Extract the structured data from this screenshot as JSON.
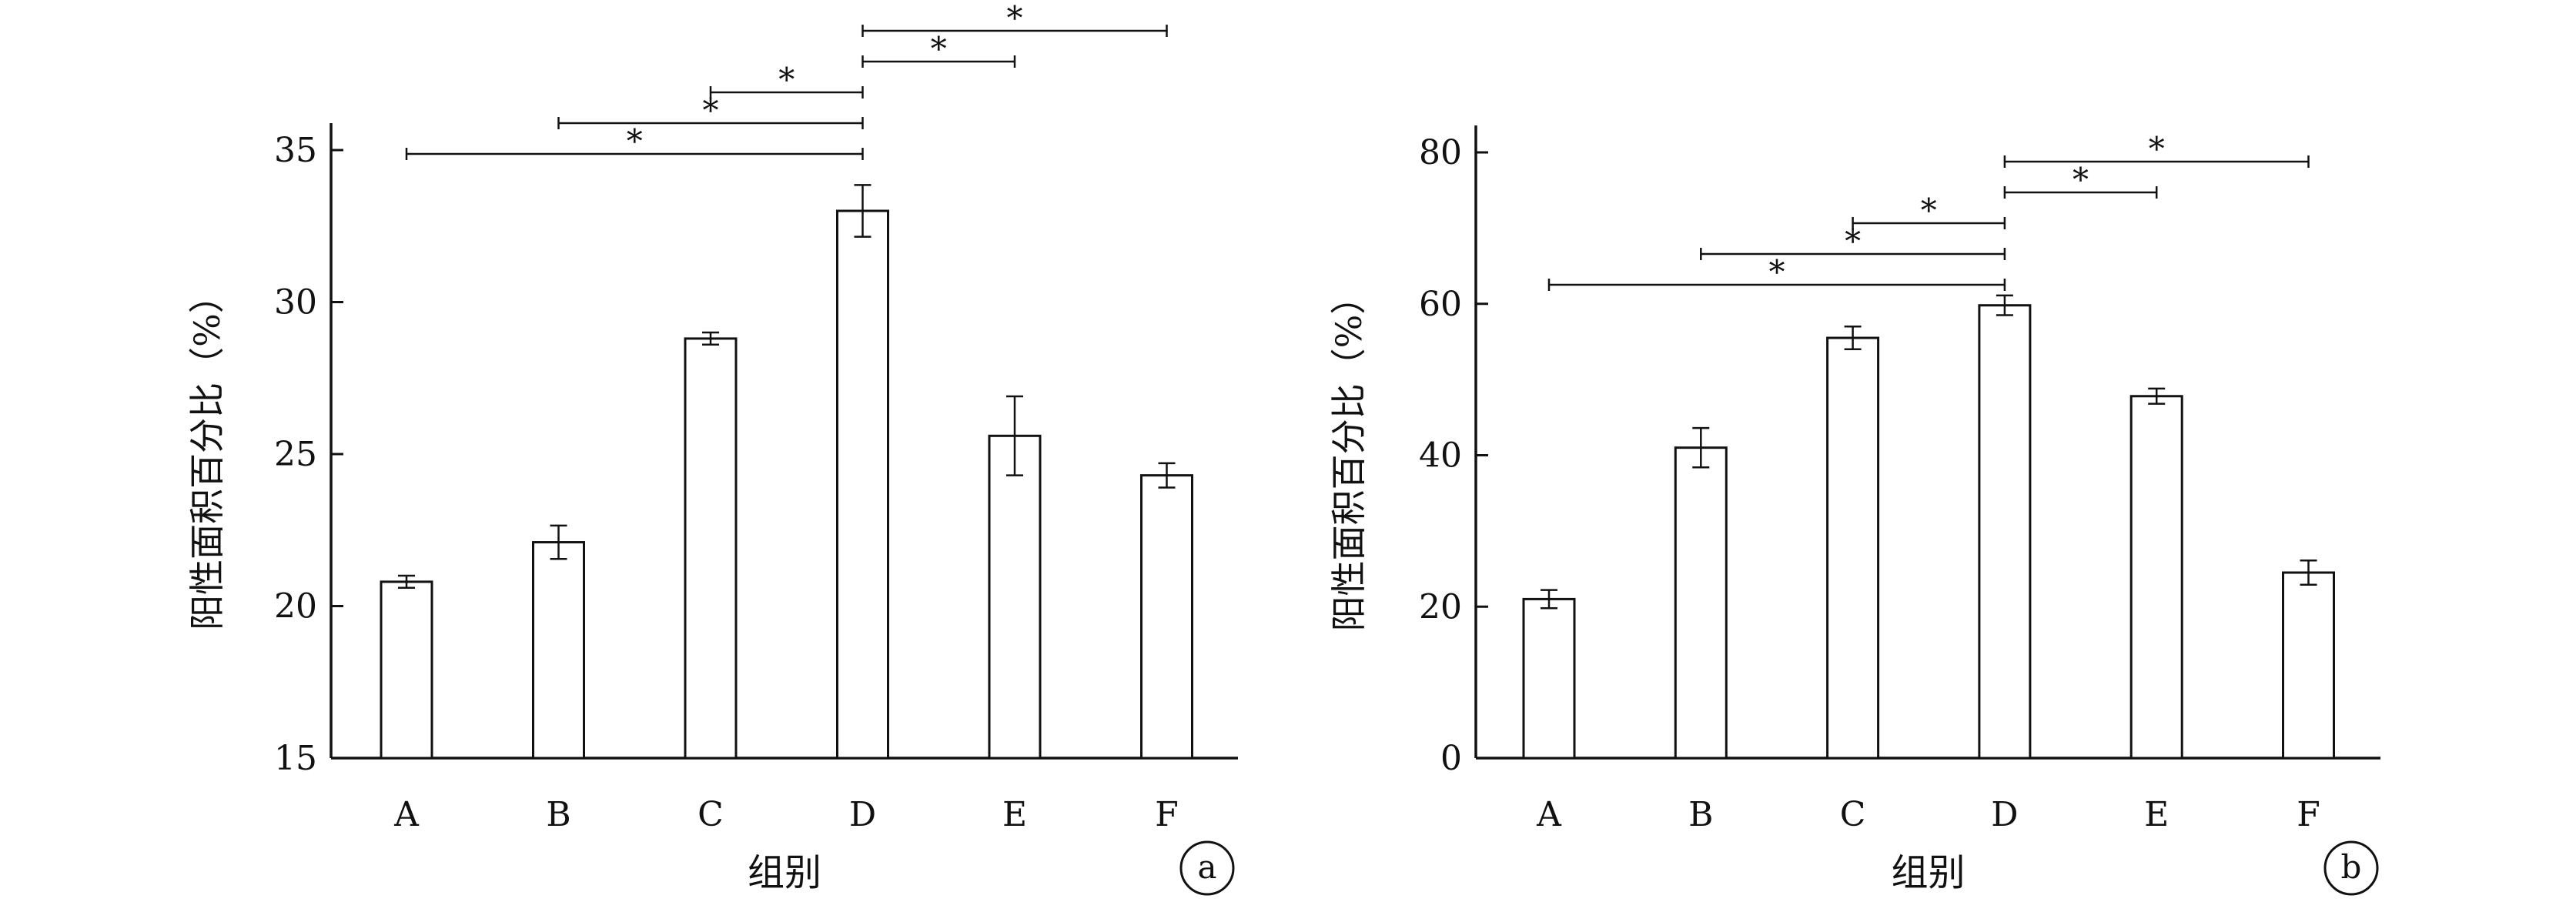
{
  "chart_data": [
    {
      "type": "bar",
      "panel_label": "a",
      "categories": [
        "A",
        "B",
        "C",
        "D",
        "E",
        "F"
      ],
      "values": [
        20.8,
        22.1,
        28.8,
        33.0,
        25.6,
        24.3
      ],
      "errors": [
        0.2,
        0.55,
        0.2,
        0.85,
        1.3,
        0.4
      ],
      "ylim": [
        15,
        35
      ],
      "yticks": [
        "15",
        "20",
        "25",
        "30",
        "35"
      ],
      "xlabel": "组别",
      "ylabel": "阳性面积百分比（%）",
      "significance": [
        {
          "from": "A",
          "to": "D",
          "label": "*"
        },
        {
          "from": "B",
          "to": "D",
          "label": "*"
        },
        {
          "from": "C",
          "to": "D",
          "label": "*"
        },
        {
          "from": "D",
          "to": "E",
          "label": "*"
        },
        {
          "from": "D",
          "to": "F",
          "label": "*"
        }
      ]
    },
    {
      "type": "bar",
      "panel_label": "b",
      "categories": [
        "A",
        "B",
        "C",
        "D",
        "E",
        "F"
      ],
      "values": [
        21.0,
        41.0,
        55.5,
        59.8,
        47.8,
        24.5
      ],
      "errors": [
        1.2,
        2.6,
        1.5,
        1.3,
        1.0,
        1.6
      ],
      "ylim": [
        0,
        80
      ],
      "yticks": [
        "0",
        "20",
        "40",
        "60",
        "80"
      ],
      "xlabel": "组别",
      "ylabel": "阳性面积百分比（%）",
      "significance": [
        {
          "from": "A",
          "to": "D",
          "label": "*"
        },
        {
          "from": "B",
          "to": "D",
          "label": "*"
        },
        {
          "from": "C",
          "to": "D",
          "label": "*"
        },
        {
          "from": "D",
          "to": "E",
          "label": "*"
        },
        {
          "from": "D",
          "to": "F",
          "label": "*"
        }
      ]
    }
  ]
}
